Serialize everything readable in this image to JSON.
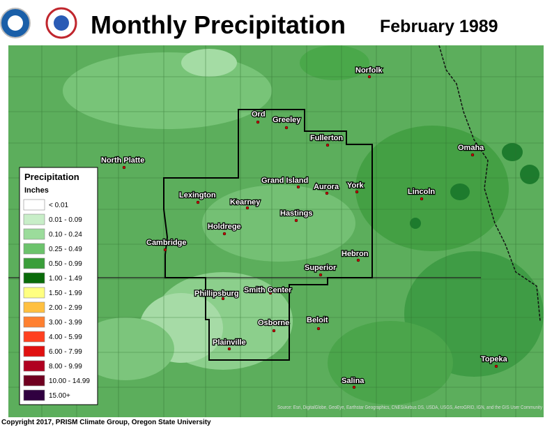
{
  "header": {
    "title": "Monthly Precipitation",
    "date": "February 1989"
  },
  "legend": {
    "title": "Precipitation",
    "units": "Inches",
    "items": [
      {
        "label": "< 0.01",
        "color": "#ffffff"
      },
      {
        "label": "0.01 - 0.09",
        "color": "#c8eec8"
      },
      {
        "label": "0.10 - 0.24",
        "color": "#9bdc9b"
      },
      {
        "label": "0.25 - 0.49",
        "color": "#6cc36c"
      },
      {
        "label": "0.50 - 0.99",
        "color": "#3a9e3a"
      },
      {
        "label": "1.00 - 1.49",
        "color": "#0a6b0a"
      },
      {
        "label": "1.50 - 1.99",
        "color": "#ffff80"
      },
      {
        "label": "2.00 - 2.99",
        "color": "#ffc040"
      },
      {
        "label": "3.00 - 3.99",
        "color": "#ff8030"
      },
      {
        "label": "4.00 - 5.99",
        "color": "#ff4020"
      },
      {
        "label": "6.00 - 7.99",
        "color": "#e01010"
      },
      {
        "label": "8.00 - 9.99",
        "color": "#b00020"
      },
      {
        "label": "10.00 - 14.99",
        "color": "#700020"
      },
      {
        "label": "15.00+",
        "color": "#300040"
      }
    ]
  },
  "cities": [
    "Norfolk",
    "Ord",
    "Greeley",
    "Fullerton",
    "North Platte",
    "Omaha",
    "Grand Island",
    "Aurora",
    "York",
    "Lincoln",
    "Lexington",
    "Kearney",
    "Hastings",
    "Holdrege",
    "Cambridge",
    "Hebron",
    "Superior",
    "Phillipsburg",
    "Smith Center",
    "Beloit",
    "Osborne",
    "Plainville",
    "Topeka",
    "Salina"
  ],
  "footer": {
    "copyright": "Copyright 2017, PRISM Climate Group, Oregon State University",
    "source": "Source: Esri, DigitalGlobe, GeoEye, Earthstar Geographics, CNES/Airbus DS, USDA, USGS, AeroGRID, IGN, and the GIS User Community"
  }
}
